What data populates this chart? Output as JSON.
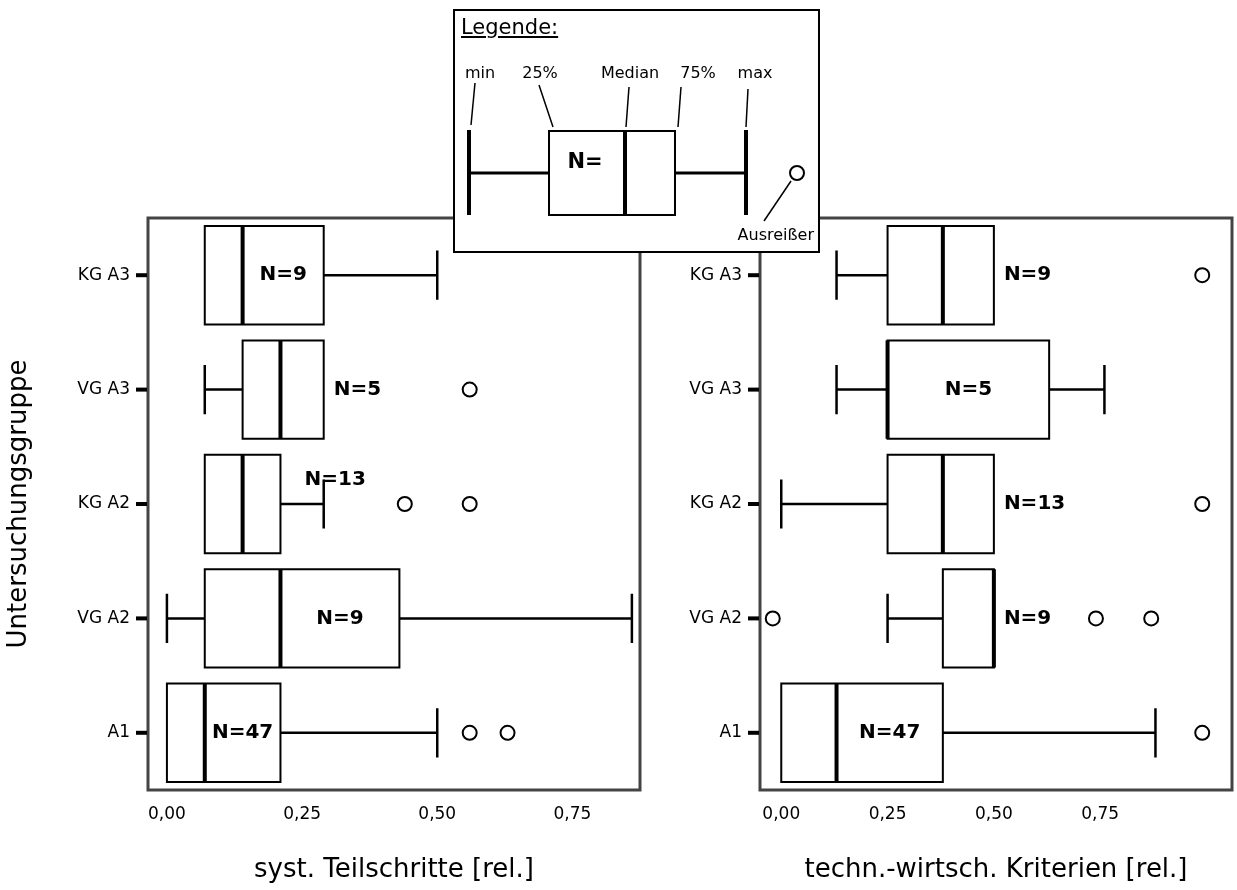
{
  "chart_data": [
    {
      "type": "box",
      "orientation": "horizontal",
      "xlabel": "syst. Teilschritte [rel.]",
      "ylabel": "Untersuchungsgruppe",
      "categories": [
        "KG A3",
        "VG A3",
        "KG A2",
        "VG A2",
        "A1"
      ],
      "xlim": [
        -0.035,
        0.875
      ],
      "xticks": [
        {
          "value": 0,
          "label": "0,00"
        },
        {
          "value": 0.25,
          "label": "0,25"
        },
        {
          "value": 0.5,
          "label": "0,50"
        },
        {
          "value": 0.75,
          "label": "0,75"
        }
      ],
      "series": [
        {
          "color": "#000000",
          "boxes": [
            {
              "low": 0.07,
              "q1": 0.07,
              "median": 0.14,
              "q3": 0.29,
              "high": 0.5
            },
            {
              "low": 0.07,
              "q1": 0.14,
              "median": 0.21,
              "q3": 0.29,
              "high": 0.29,
              "outliers": [
                0.56
              ]
            },
            {
              "low": 0.07,
              "q1": 0.07,
              "median": 0.14,
              "q3": 0.21,
              "high": 0.29,
              "outliers": [
                0.44,
                0.56
              ]
            },
            {
              "low": 0,
              "q1": 0.07,
              "median": 0.21,
              "q3": 0.43,
              "high": 0.86
            },
            {
              "low": 0,
              "q1": 0,
              "median": 0.07,
              "q3": 0.21,
              "high": 0.5,
              "outliers": [
                0.56,
                0.63
              ]
            }
          ]
        }
      ],
      "annotations": [
        "N=9",
        "N=5",
        "N=13",
        "N=9",
        "N=47"
      ]
    },
    {
      "type": "box",
      "orientation": "horizontal",
      "xlabel": "techn.-wirtsch. Kriterien [rel.]",
      "categories": [
        "KG A3",
        "VG A3",
        "KG A2",
        "VG A2",
        "A1"
      ],
      "xlim": [
        -0.05,
        1.06
      ],
      "xticks": [
        {
          "value": 0,
          "label": "0,00"
        },
        {
          "value": 0.25,
          "label": "0,25"
        },
        {
          "value": 0.5,
          "label": "0,50"
        },
        {
          "value": 0.75,
          "label": "0,75"
        }
      ],
      "series": [
        {
          "color": "#000000",
          "boxes": [
            {
              "low": 0.13,
              "q1": 0.25,
              "median": 0.38,
              "q3": 0.5,
              "high": 0.5,
              "outliers": [
                0.99
              ]
            },
            {
              "low": 0.13,
              "q1": 0.25,
              "median": 0.25,
              "q3": 0.63,
              "high": 0.76
            },
            {
              "low": 0,
              "q1": 0.25,
              "median": 0.38,
              "q3": 0.5,
              "high": 0.5,
              "outliers": [
                0.99
              ]
            },
            {
              "low": 0.25,
              "q1": 0.38,
              "median": 0.5,
              "q3": 0.5,
              "high": 0.5,
              "outliers": [
                -0.02,
                0.74,
                0.87
              ]
            },
            {
              "low": 0,
              "q1": 0,
              "median": 0.13,
              "q3": 0.38,
              "high": 0.88,
              "outliers": [
                0.99
              ]
            }
          ]
        }
      ],
      "annotations": [
        "N=9",
        "N=5",
        "N=13",
        "N=9",
        "N=47"
      ]
    },
    {
      "type": "other",
      "title": "Legende:",
      "annotations": [
        "min",
        "25%",
        "Median",
        "75%",
        "max",
        "N=",
        "Ausreißer"
      ]
    }
  ]
}
